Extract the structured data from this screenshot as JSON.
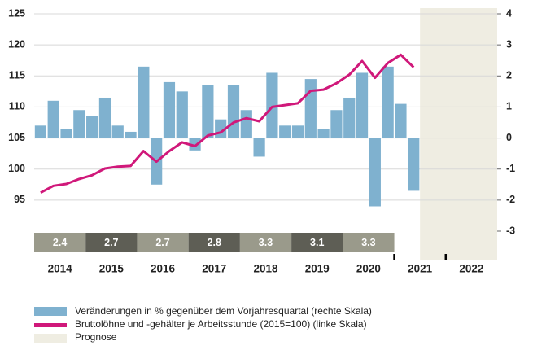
{
  "chart_data": {
    "type": "bar_line",
    "x_labels": [
      "2014",
      "2015",
      "2016",
      "2017",
      "2018",
      "2019",
      "2020",
      "2021",
      "2022"
    ],
    "series": [
      {
        "name": "Veränderungen in % gegenüber dem Vorjahresquartal (rechte Skala)",
        "type": "bar",
        "axis": "y2",
        "color": "#7fb1cf",
        "values": [
          0.4,
          1.2,
          0.3,
          0.9,
          0.7,
          1.3,
          0.4,
          0.2,
          2.3,
          -1.5,
          1.8,
          1.5,
          -0.4,
          1.7,
          0.6,
          1.7,
          0.9,
          -0.6,
          2.1,
          0.4,
          0.4,
          1.9,
          0.3,
          0.9,
          1.3,
          2.1,
          -2.2,
          2.3,
          1.1,
          -1.7,
          null,
          null,
          null,
          null,
          null,
          null
        ]
      },
      {
        "name": "Bruttolöhne und -gehälter je Arbeitsstunde (2015=100) (linke Skala)",
        "type": "line",
        "axis": "y",
        "color": "#d0187a",
        "values": [
          96.2,
          97.3,
          97.6,
          98.4,
          99.0,
          100.1,
          100.4,
          100.5,
          102.9,
          101.2,
          102.9,
          104.3,
          103.7,
          105.4,
          105.9,
          107.5,
          108.2,
          107.7,
          110.0,
          110.3,
          110.6,
          112.6,
          112.8,
          113.8,
          115.2,
          117.4,
          114.7,
          117.1,
          118.4,
          116.4,
          null,
          null,
          null,
          null,
          null,
          null
        ]
      }
    ],
    "forecast": {
      "name": "Prognose",
      "color": "#efede2",
      "start": 30
    },
    "period_averages": {
      "values": [
        2.4,
        2.7,
        2.7,
        2.8,
        3.3,
        3.1,
        3.3
      ],
      "colors": [
        "#9a9a8b",
        "#5e5e55",
        "#9a9a8b",
        "#5e5e55",
        "#9a9a8b",
        "#5e5e55",
        "#9a9a8b"
      ]
    },
    "ylim": [
      90,
      125
    ],
    "yticks": [
      95,
      100,
      105,
      110,
      115,
      120,
      125
    ],
    "y2lim": [
      -3,
      4
    ],
    "y2ticks": [
      -3,
      -2,
      -1,
      0,
      1,
      2,
      3,
      4
    ],
    "grid": true
  }
}
